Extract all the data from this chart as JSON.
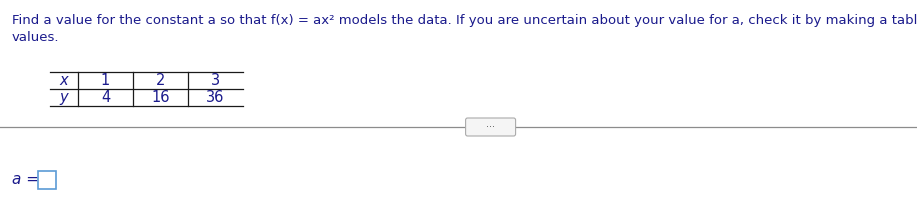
{
  "title_line1": "Find a value for the constant a so that f(x) = ax² models the data. If you are uncertain about your value for a, check it by making a table of",
  "title_line2": "values.",
  "table_x_label": "x",
  "table_y_label": "y",
  "table_x_values": [
    "1",
    "2",
    "3"
  ],
  "table_y_values": [
    "4",
    "16",
    "36"
  ],
  "answer_label": "a =",
  "text_color": "#1a1a8c",
  "bg_color": "#ffffff",
  "separator_line_color": "#8c8c8c",
  "table_line_color": "#1a1a1a",
  "box_edge_color": "#5b9bd5",
  "dots_color": "#555555",
  "dots_box_edge": "#aaaaaa",
  "dots_box_face": "#f5f5f5",
  "title_fontsize": 9.5,
  "table_fontsize": 10.5,
  "answer_fontsize": 11
}
